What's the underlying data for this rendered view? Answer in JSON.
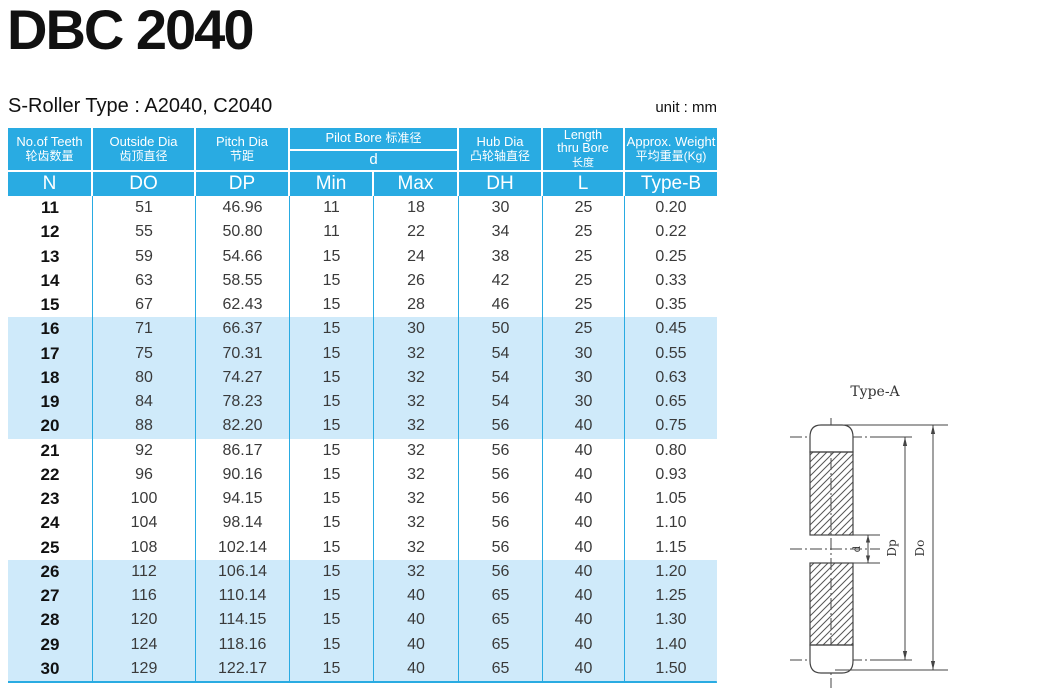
{
  "page": {
    "title": "DBC 2040",
    "subtitle": "S-Roller Type : A2040, C2040",
    "unit_label": "unit : mm"
  },
  "colors": {
    "header_bg": "#29abe2",
    "row_tint": "#cfeafa",
    "text": "#3a3a3a"
  },
  "table": {
    "header": {
      "col1": {
        "en": "No.of Teeth",
        "zh": "轮齿数量",
        "code": "N"
      },
      "col2": {
        "en": "Outside Dia",
        "zh": "齿顶直径",
        "code": "DO"
      },
      "col3": {
        "en": "Pitch Dia",
        "zh": "节距",
        "code": "DP"
      },
      "pilot": {
        "en": "Pilot Bore",
        "zh": "标准径",
        "d": "d",
        "min": "Min",
        "max": "Max"
      },
      "col6": {
        "en": "Hub Dia",
        "zh": "凸轮轴直径",
        "code": "DH"
      },
      "col7": {
        "en1": "Length",
        "en2": "thru Bore",
        "zh": "长度",
        "code": "L"
      },
      "col8": {
        "en": "Approx. Weight",
        "zh": "平均重量(Kg)",
        "code": "Type-B"
      }
    },
    "rows": [
      [
        "11",
        "51",
        "46.96",
        "11",
        "18",
        "30",
        "25",
        "0.20"
      ],
      [
        "12",
        "55",
        "50.80",
        "11",
        "22",
        "34",
        "25",
        "0.22"
      ],
      [
        "13",
        "59",
        "54.66",
        "15",
        "24",
        "38",
        "25",
        "0.25"
      ],
      [
        "14",
        "63",
        "58.55",
        "15",
        "26",
        "42",
        "25",
        "0.33"
      ],
      [
        "15",
        "67",
        "62.43",
        "15",
        "28",
        "46",
        "25",
        "0.35"
      ],
      [
        "16",
        "71",
        "66.37",
        "15",
        "30",
        "50",
        "25",
        "0.45"
      ],
      [
        "17",
        "75",
        "70.31",
        "15",
        "32",
        "54",
        "30",
        "0.55"
      ],
      [
        "18",
        "80",
        "74.27",
        "15",
        "32",
        "54",
        "30",
        "0.63"
      ],
      [
        "19",
        "84",
        "78.23",
        "15",
        "32",
        "54",
        "30",
        "0.65"
      ],
      [
        "20",
        "88",
        "82.20",
        "15",
        "32",
        "56",
        "40",
        "0.75"
      ],
      [
        "21",
        "92",
        "86.17",
        "15",
        "32",
        "56",
        "40",
        "0.80"
      ],
      [
        "22",
        "96",
        "90.16",
        "15",
        "32",
        "56",
        "40",
        "0.93"
      ],
      [
        "23",
        "100",
        "94.15",
        "15",
        "32",
        "56",
        "40",
        "1.05"
      ],
      [
        "24",
        "104",
        "98.14",
        "15",
        "32",
        "56",
        "40",
        "1.10"
      ],
      [
        "25",
        "108",
        "102.14",
        "15",
        "32",
        "56",
        "40",
        "1.15"
      ],
      [
        "26",
        "112",
        "106.14",
        "15",
        "32",
        "56",
        "40",
        "1.20"
      ],
      [
        "27",
        "116",
        "110.14",
        "15",
        "40",
        "65",
        "40",
        "1.25"
      ],
      [
        "28",
        "120",
        "114.15",
        "15",
        "40",
        "65",
        "40",
        "1.30"
      ],
      [
        "29",
        "124",
        "118.16",
        "15",
        "40",
        "65",
        "40",
        "1.40"
      ],
      [
        "30",
        "129",
        "122.17",
        "15",
        "40",
        "65",
        "40",
        "1.50"
      ]
    ]
  },
  "diagram": {
    "caption": "Type-A",
    "bore_label": "d",
    "pitch_label": "Dp",
    "outside_label": "Do"
  }
}
